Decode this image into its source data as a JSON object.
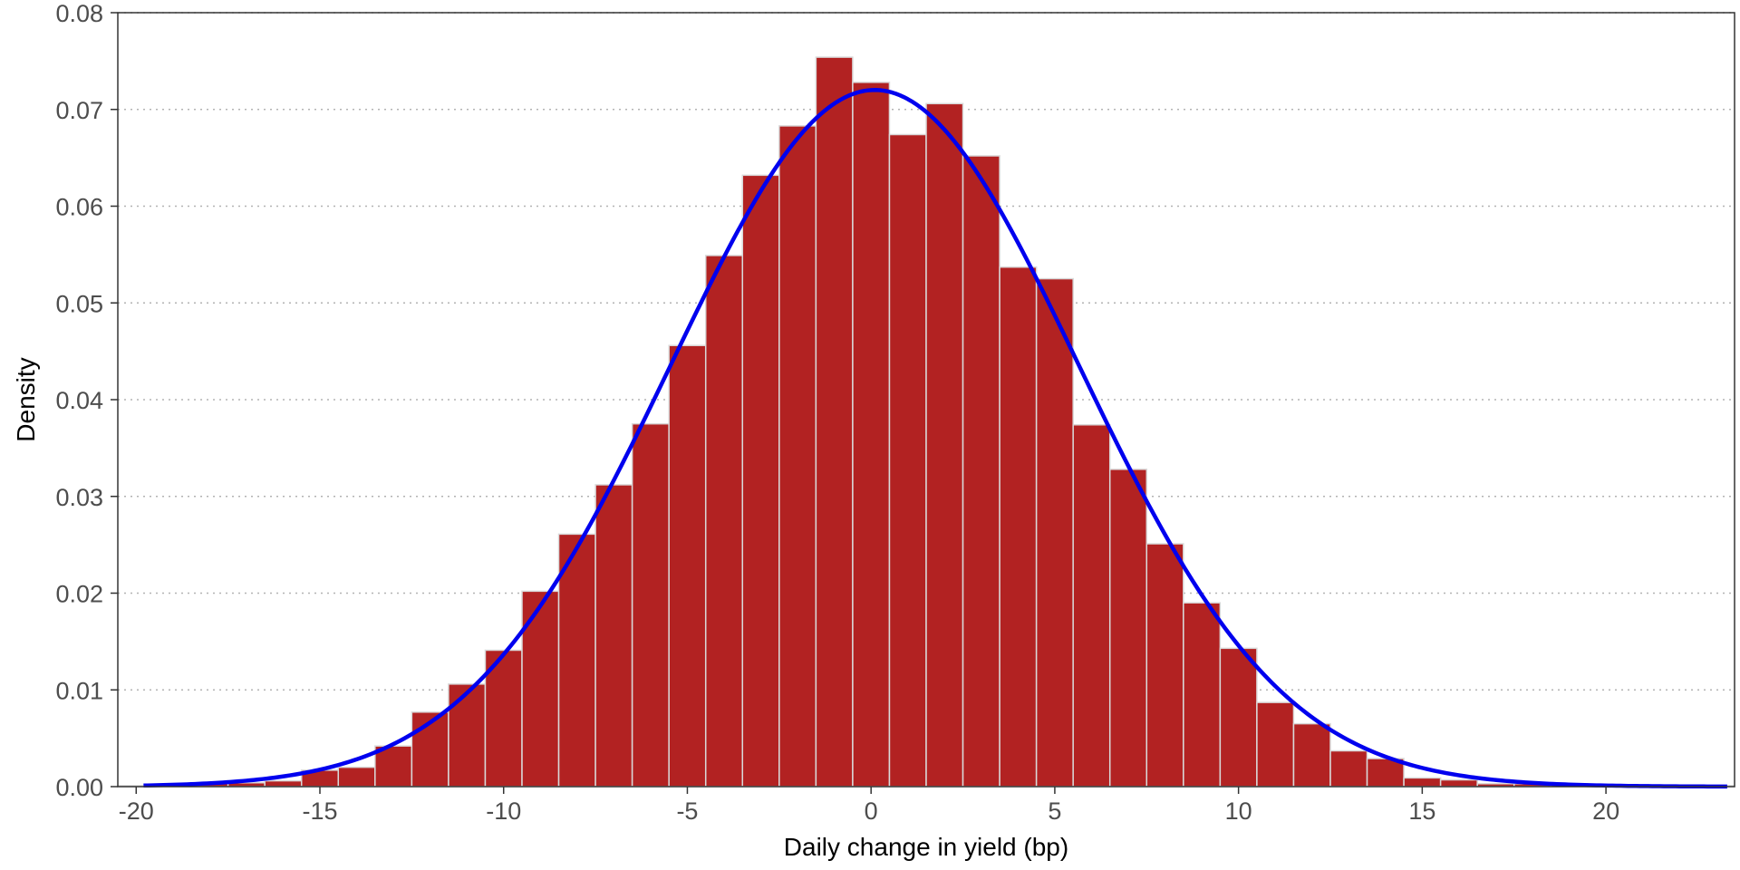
{
  "chart_data": {
    "type": "bar",
    "title": "",
    "xlabel": "Daily change in yield (bp)",
    "ylabel": "Density",
    "xlim": [
      -20.5,
      23.5
    ],
    "ylim": [
      0,
      0.08
    ],
    "x_ticks": [
      -20,
      -15,
      -10,
      -5,
      0,
      5,
      10,
      15,
      20
    ],
    "x_tick_labels": [
      "-20",
      "-15",
      "-10",
      "-5",
      "0",
      "5",
      "10",
      "15",
      "20"
    ],
    "y_ticks": [
      0,
      0.01,
      0.02,
      0.03,
      0.04,
      0.05,
      0.06,
      0.07,
      0.08
    ],
    "y_tick_labels": [
      "0.00",
      "0.01",
      "0.02",
      "0.03",
      "0.04",
      "0.05",
      "0.06",
      "0.07",
      "0.08"
    ],
    "grid": "horizontal-dotted",
    "bin_width": 1,
    "series": [
      {
        "type": "histogram",
        "color": "#b22222",
        "bins": [
          {
            "start": -20.5,
            "end": -19.5,
            "value": 0.0001
          },
          {
            "start": -19.5,
            "end": -18.5,
            "value": 0.0001
          },
          {
            "start": -18.5,
            "end": -17.5,
            "value": 0.0004
          },
          {
            "start": -17.5,
            "end": -16.5,
            "value": 0.0004
          },
          {
            "start": -16.5,
            "end": -15.5,
            "value": 0.0006
          },
          {
            "start": -15.5,
            "end": -14.5,
            "value": 0.0017
          },
          {
            "start": -14.5,
            "end": -13.5,
            "value": 0.002
          },
          {
            "start": -13.5,
            "end": -12.5,
            "value": 0.0042
          },
          {
            "start": -12.5,
            "end": -11.5,
            "value": 0.0077
          },
          {
            "start": -11.5,
            "end": -10.5,
            "value": 0.0106
          },
          {
            "start": -10.5,
            "end": -9.5,
            "value": 0.0141
          },
          {
            "start": -9.5,
            "end": -8.5,
            "value": 0.0202
          },
          {
            "start": -8.5,
            "end": -7.5,
            "value": 0.0261
          },
          {
            "start": -7.5,
            "end": -6.5,
            "value": 0.0312
          },
          {
            "start": -6.5,
            "end": -5.5,
            "value": 0.0375
          },
          {
            "start": -5.5,
            "end": -4.5,
            "value": 0.0456
          },
          {
            "start": -4.5,
            "end": -3.5,
            "value": 0.0549
          },
          {
            "start": -3.5,
            "end": -2.5,
            "value": 0.0632
          },
          {
            "start": -2.5,
            "end": -1.5,
            "value": 0.0683
          },
          {
            "start": -1.5,
            "end": -0.5,
            "value": 0.0754
          },
          {
            "start": -0.5,
            "end": 0.5,
            "value": 0.0728
          },
          {
            "start": 0.5,
            "end": 1.5,
            "value": 0.0674
          },
          {
            "start": 1.5,
            "end": 2.5,
            "value": 0.0706
          },
          {
            "start": 2.5,
            "end": 3.5,
            "value": 0.0652
          },
          {
            "start": 3.5,
            "end": 4.5,
            "value": 0.0537
          },
          {
            "start": 4.5,
            "end": 5.5,
            "value": 0.0525
          },
          {
            "start": 5.5,
            "end": 6.5,
            "value": 0.0374
          },
          {
            "start": 6.5,
            "end": 7.5,
            "value": 0.0328
          },
          {
            "start": 7.5,
            "end": 8.5,
            "value": 0.0251
          },
          {
            "start": 8.5,
            "end": 9.5,
            "value": 0.019
          },
          {
            "start": 9.5,
            "end": 10.5,
            "value": 0.0143
          },
          {
            "start": 10.5,
            "end": 11.5,
            "value": 0.0087
          },
          {
            "start": 11.5,
            "end": 12.5,
            "value": 0.0065
          },
          {
            "start": 12.5,
            "end": 13.5,
            "value": 0.0037
          },
          {
            "start": 13.5,
            "end": 14.5,
            "value": 0.0029
          },
          {
            "start": 14.5,
            "end": 15.5,
            "value": 0.0009
          },
          {
            "start": 15.5,
            "end": 16.5,
            "value": 0.0007
          },
          {
            "start": 16.5,
            "end": 17.5,
            "value": 0.0003
          },
          {
            "start": 17.5,
            "end": 18.5,
            "value": 0.0003
          },
          {
            "start": 18.5,
            "end": 19.5,
            "value": 0.0003
          },
          {
            "start": 19.5,
            "end": 20.5,
            "value": 0.0001
          },
          {
            "start": 20.5,
            "end": 21.5,
            "value": 0.0001
          },
          {
            "start": 21.5,
            "end": 22.5,
            "value": 0.0001
          },
          {
            "start": 22.5,
            "end": 23.5,
            "value": 0.0001
          }
        ]
      },
      {
        "type": "line",
        "color": "#0000ee",
        "curve": "normal-density",
        "mean": 0.1,
        "sd": 5.54
      }
    ]
  }
}
